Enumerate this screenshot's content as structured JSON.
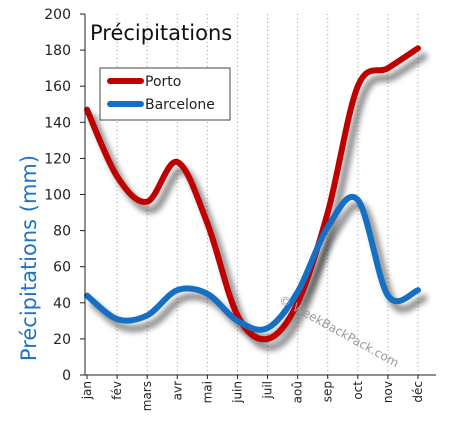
{
  "chart_data": {
    "type": "line",
    "title": "Précipitations",
    "ylabel": "Précipitations (mm)",
    "xlabel": "",
    "categories": [
      "jan",
      "fév",
      "mars",
      "avr",
      "mai",
      "juin",
      "juil",
      "aoû",
      "sep",
      "oct",
      "nov",
      "déc"
    ],
    "ylim": [
      0,
      200
    ],
    "yticks": [
      0,
      20,
      40,
      60,
      80,
      100,
      120,
      140,
      160,
      180,
      200
    ],
    "grid": "vertical dotted",
    "legend_position": "top-left",
    "series": [
      {
        "name": "Porto",
        "color": "#c00000",
        "values": [
          147,
          110,
          96,
          118,
          84,
          33,
          20,
          40,
          90,
          160,
          170,
          181
        ]
      },
      {
        "name": "Barcelone",
        "color": "#1570c4",
        "values": [
          44,
          31,
          33,
          47,
          45,
          30,
          26,
          46,
          82,
          97,
          44,
          47
        ]
      }
    ],
    "watermark": "© WeekBackPack.com"
  }
}
